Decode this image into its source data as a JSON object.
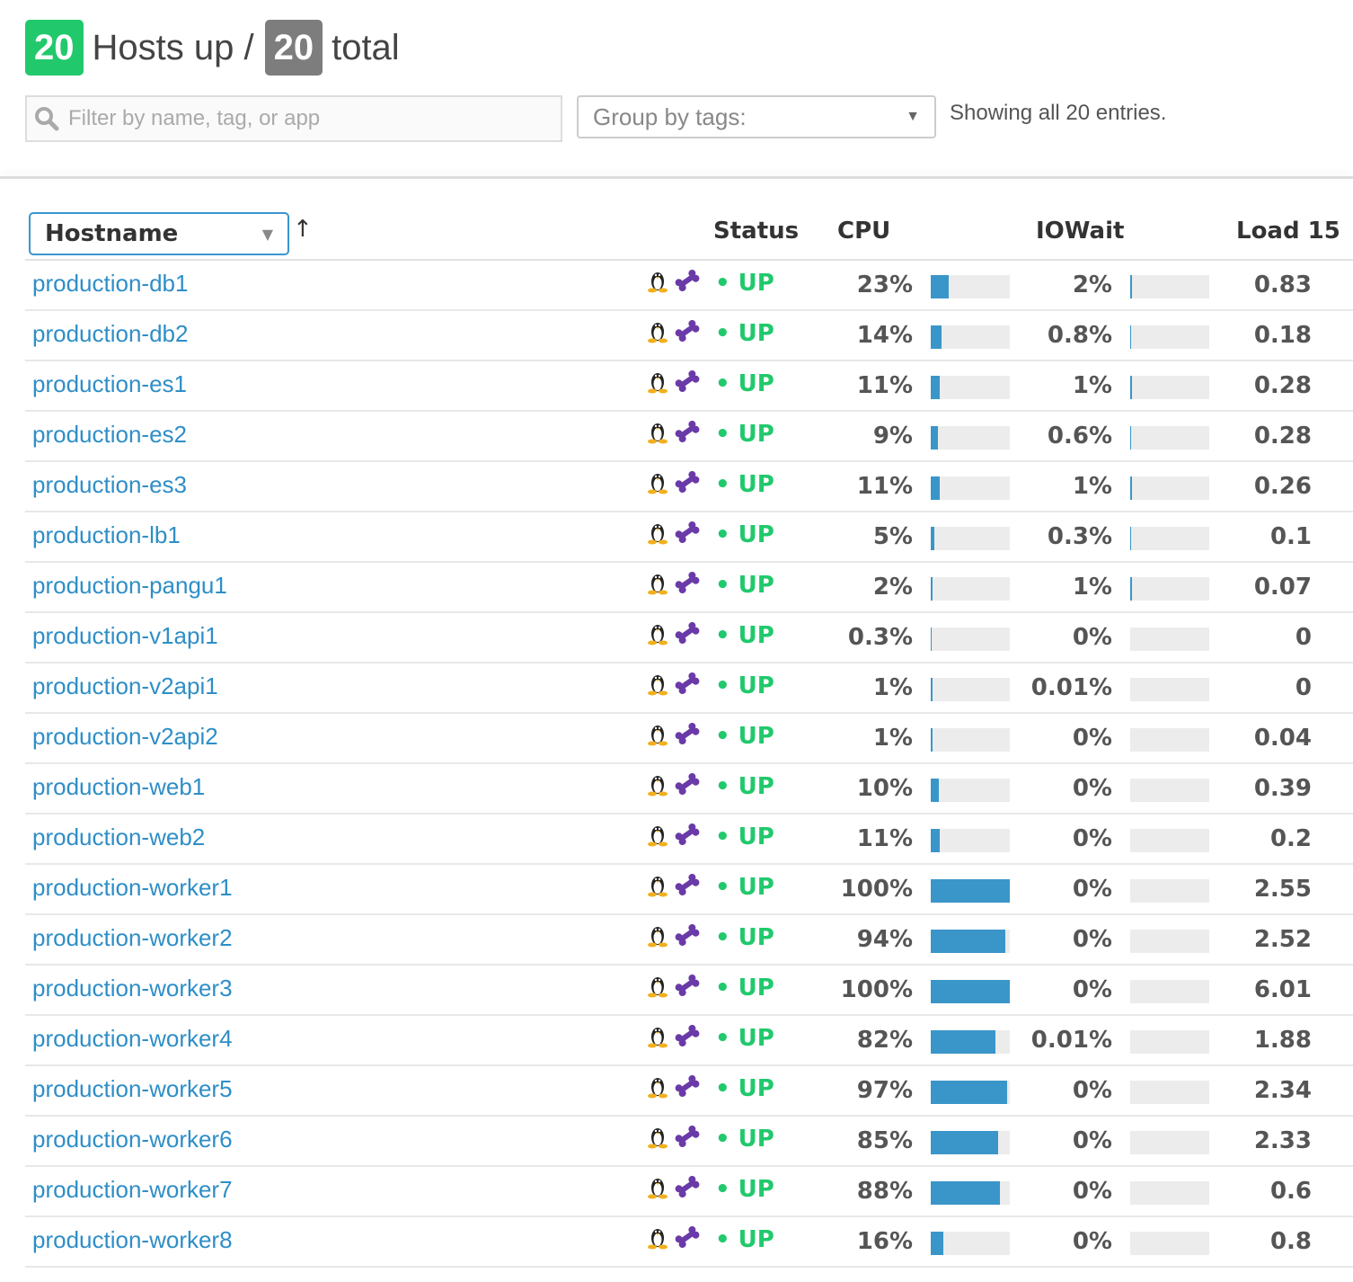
{
  "header": {
    "hosts_up": "20",
    "hosts_up_label": "Hosts up /",
    "hosts_total": "20",
    "total_label": "total"
  },
  "filter": {
    "placeholder": "Filter by name, tag, or app",
    "icon": "search-icon"
  },
  "group_by": {
    "label": "Group by tags:"
  },
  "showing": "Showing all 20 entries.",
  "table": {
    "sort_select": "Hostname",
    "sort_direction": "↑",
    "columns": {
      "status": "Status",
      "cpu": "CPU",
      "iowait": "IOWait",
      "load15": "Load 15"
    },
    "colors": {
      "link": "#2e8ec7",
      "up": "#21c96c",
      "bar": "#3a96c9"
    },
    "rows": [
      {
        "host": "production-db1",
        "status": "UP",
        "cpu": "23%",
        "cpu_pct": 23,
        "iowait": "2%",
        "io_pct": 2,
        "load": "0.83"
      },
      {
        "host": "production-db2",
        "status": "UP",
        "cpu": "14%",
        "cpu_pct": 14,
        "iowait": "0.8%",
        "io_pct": 0.8,
        "load": "0.18"
      },
      {
        "host": "production-es1",
        "status": "UP",
        "cpu": "11%",
        "cpu_pct": 11,
        "iowait": "1%",
        "io_pct": 1,
        "load": "0.28"
      },
      {
        "host": "production-es2",
        "status": "UP",
        "cpu": "9%",
        "cpu_pct": 9,
        "iowait": "0.6%",
        "io_pct": 0.6,
        "load": "0.28"
      },
      {
        "host": "production-es3",
        "status": "UP",
        "cpu": "11%",
        "cpu_pct": 11,
        "iowait": "1%",
        "io_pct": 1,
        "load": "0.26"
      },
      {
        "host": "production-lb1",
        "status": "UP",
        "cpu": "5%",
        "cpu_pct": 5,
        "iowait": "0.3%",
        "io_pct": 0.3,
        "load": "0.1"
      },
      {
        "host": "production-pangu1",
        "status": "UP",
        "cpu": "2%",
        "cpu_pct": 2,
        "iowait": "1%",
        "io_pct": 1,
        "load": "0.07"
      },
      {
        "host": "production-v1api1",
        "status": "UP",
        "cpu": "0.3%",
        "cpu_pct": 0.3,
        "iowait": "0%",
        "io_pct": 0,
        "load": "0"
      },
      {
        "host": "production-v2api1",
        "status": "UP",
        "cpu": "1%",
        "cpu_pct": 1,
        "iowait": "0.01%",
        "io_pct": 0.01,
        "load": "0"
      },
      {
        "host": "production-v2api2",
        "status": "UP",
        "cpu": "1%",
        "cpu_pct": 1,
        "iowait": "0%",
        "io_pct": 0,
        "load": "0.04"
      },
      {
        "host": "production-web1",
        "status": "UP",
        "cpu": "10%",
        "cpu_pct": 10,
        "iowait": "0%",
        "io_pct": 0,
        "load": "0.39"
      },
      {
        "host": "production-web2",
        "status": "UP",
        "cpu": "11%",
        "cpu_pct": 11,
        "iowait": "0%",
        "io_pct": 0,
        "load": "0.2"
      },
      {
        "host": "production-worker1",
        "status": "UP",
        "cpu": "100%",
        "cpu_pct": 100,
        "iowait": "0%",
        "io_pct": 0,
        "load": "2.55"
      },
      {
        "host": "production-worker2",
        "status": "UP",
        "cpu": "94%",
        "cpu_pct": 94,
        "iowait": "0%",
        "io_pct": 0,
        "load": "2.52"
      },
      {
        "host": "production-worker3",
        "status": "UP",
        "cpu": "100%",
        "cpu_pct": 100,
        "iowait": "0%",
        "io_pct": 0,
        "load": "6.01"
      },
      {
        "host": "production-worker4",
        "status": "UP",
        "cpu": "82%",
        "cpu_pct": 82,
        "iowait": "0.01%",
        "io_pct": 0.01,
        "load": "1.88"
      },
      {
        "host": "production-worker5",
        "status": "UP",
        "cpu": "97%",
        "cpu_pct": 97,
        "iowait": "0%",
        "io_pct": 0,
        "load": "2.34"
      },
      {
        "host": "production-worker6",
        "status": "UP",
        "cpu": "85%",
        "cpu_pct": 85,
        "iowait": "0%",
        "io_pct": 0,
        "load": "2.33"
      },
      {
        "host": "production-worker7",
        "status": "UP",
        "cpu": "88%",
        "cpu_pct": 88,
        "iowait": "0%",
        "io_pct": 0,
        "load": "0.6"
      },
      {
        "host": "production-worker8",
        "status": "UP",
        "cpu": "16%",
        "cpu_pct": 16,
        "iowait": "0%",
        "io_pct": 0,
        "load": "0.8"
      }
    ]
  }
}
